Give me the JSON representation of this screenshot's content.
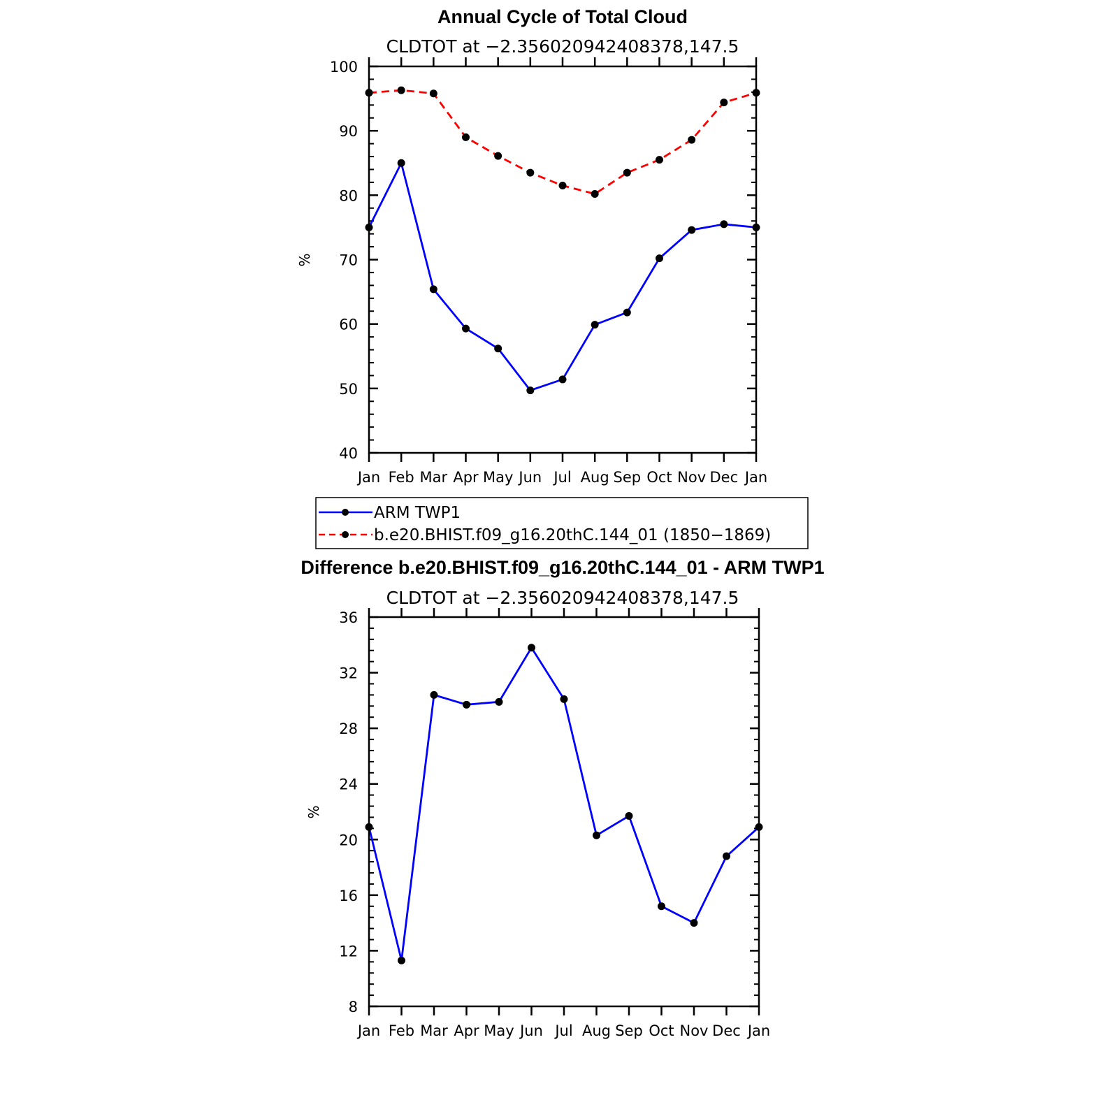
{
  "chart_data": [
    {
      "type": "line",
      "title": "Annual Cycle of Total Cloud",
      "subtitle": "CLDTOT at −2.356020942408378,147.5",
      "xlabel": "",
      "ylabel": "%",
      "categories": [
        "Jan",
        "Feb",
        "Mar",
        "Apr",
        "May",
        "Jun",
        "Jul",
        "Aug",
        "Sep",
        "Oct",
        "Nov",
        "Dec",
        "Jan"
      ],
      "ylim": [
        40,
        100
      ],
      "yticks": [
        40,
        50,
        60,
        70,
        80,
        90,
        100
      ],
      "grid": false,
      "legend_position": "bottom",
      "series": [
        {
          "name": "ARM TWP1",
          "color": "#0000ff",
          "style": "solid",
          "values": [
            75.0,
            85.0,
            65.4,
            59.3,
            56.2,
            49.7,
            51.4,
            59.9,
            61.8,
            70.2,
            74.6,
            75.5,
            75.0
          ]
        },
        {
          "name": "b.e20.BHIST.f09_g16.20thC.144_01 (1850−1869)",
          "color": "#ff0000",
          "style": "dashed",
          "values": [
            95.9,
            96.3,
            95.8,
            89.0,
            86.1,
            83.5,
            81.5,
            80.2,
            83.5,
            85.5,
            88.6,
            94.4,
            95.9
          ]
        }
      ]
    },
    {
      "type": "line",
      "title": "Difference b.e20.BHIST.f09_g16.20thC.144_01 - ARM TWP1",
      "subtitle": "CLDTOT at −2.356020942408378,147.5",
      "xlabel": "",
      "ylabel": "%",
      "categories": [
        "Jan",
        "Feb",
        "Mar",
        "Apr",
        "May",
        "Jun",
        "Jul",
        "Aug",
        "Sep",
        "Oct",
        "Nov",
        "Dec",
        "Jan"
      ],
      "ylim": [
        8,
        36
      ],
      "yticks": [
        8,
        12,
        16,
        20,
        24,
        28,
        32,
        36
      ],
      "grid": false,
      "series": [
        {
          "color": "#0000ff",
          "style": "solid",
          "values": [
            20.9,
            11.3,
            30.4,
            29.7,
            29.9,
            33.8,
            30.1,
            20.3,
            21.7,
            15.2,
            14.0,
            18.8,
            20.9
          ]
        }
      ]
    }
  ]
}
